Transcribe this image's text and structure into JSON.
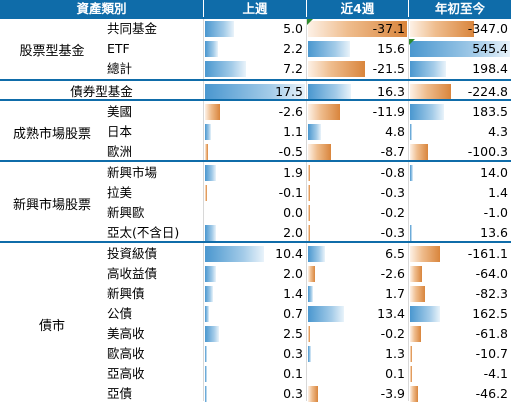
{
  "headers": {
    "category": "資產類別",
    "week": "上週",
    "four_weeks": "近4週",
    "ytd": "年初至今"
  },
  "groups": [
    {
      "name": "股票型基金",
      "rows": [
        {
          "label": "共同基金",
          "week": 5.0,
          "four": -37.1,
          "ytd": -347.0
        },
        {
          "label": "ETF",
          "week": 2.2,
          "four": 15.6,
          "ytd": 545.4
        },
        {
          "label": "總計",
          "week": 7.2,
          "four": -21.5,
          "ytd": 198.4
        }
      ]
    },
    {
      "name": "",
      "rows": [
        {
          "label": "債券型基金",
          "week": 17.5,
          "four": 16.3,
          "ytd": -224.8
        }
      ]
    },
    {
      "name": "成熟市場股票",
      "rows": [
        {
          "label": "美國",
          "week": -2.6,
          "four": -11.9,
          "ytd": 183.5
        },
        {
          "label": "日本",
          "week": 1.1,
          "four": 4.8,
          "ytd": 4.3
        },
        {
          "label": "歐洲",
          "week": -0.5,
          "four": -8.7,
          "ytd": -100.3
        }
      ]
    },
    {
      "name": "新興市場股票",
      "rows": [
        {
          "label": "新興市場",
          "week": 1.9,
          "four": -0.8,
          "ytd": 14.0
        },
        {
          "label": "拉美",
          "week": -0.1,
          "four": -0.3,
          "ytd": 1.4
        },
        {
          "label": "新興歐",
          "week": 0.0,
          "four": -0.2,
          "ytd": -1.0
        },
        {
          "label": "亞太(不含日)",
          "week": 2.0,
          "four": -0.3,
          "ytd": 13.6
        }
      ]
    },
    {
      "name": "債市",
      "rows": [
        {
          "label": "投資級債",
          "week": 10.4,
          "four": 6.5,
          "ytd": -161.1
        },
        {
          "label": "高收益債",
          "week": 2.0,
          "four": -2.6,
          "ytd": -64.0
        },
        {
          "label": "新興債",
          "week": 1.4,
          "four": 1.7,
          "ytd": -82.3
        },
        {
          "label": "公債",
          "week": 0.7,
          "four": 13.4,
          "ytd": 162.5
        },
        {
          "label": "美高收",
          "week": 2.5,
          "four": -0.2,
          "ytd": -61.8
        },
        {
          "label": "歐高收",
          "week": 0.3,
          "four": 1.3,
          "ytd": -10.7
        },
        {
          "label": "亞高收",
          "week": 0.1,
          "four": 0.1,
          "ytd": -4.1
        },
        {
          "label": "亞債",
          "week": 0.3,
          "four": -3.9,
          "ytd": -46.2
        }
      ]
    }
  ],
  "colors": {
    "header": "#0f6ca9",
    "positive": "#4a97cf",
    "negative": "#d9853c",
    "marker": "#2e8b2e"
  },
  "markers": [
    "green-triangle-icon"
  ]
}
